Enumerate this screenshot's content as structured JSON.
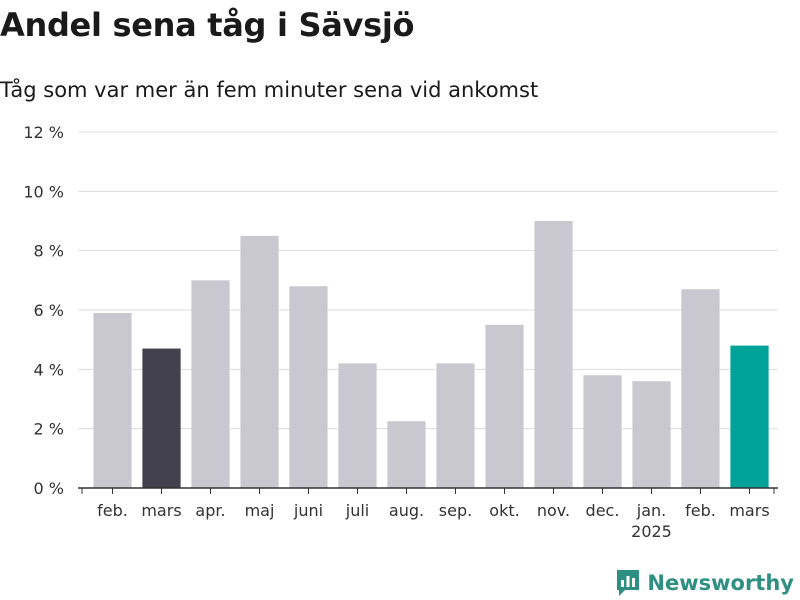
{
  "title": "Andel sena tåg i Sävsjö",
  "subtitle": "Tåg som var mer än fem minuter sena vid ankomst",
  "brand": "Newsworthy",
  "colors": {
    "default": "#c9c8d1",
    "prev_year": "#43414d",
    "current": "#00a399",
    "grid": "#dddddd",
    "brand": "#2f8f83"
  },
  "chart_data": {
    "type": "bar",
    "categories": [
      "feb.",
      "mars",
      "apr.",
      "maj",
      "juni",
      "juli",
      "aug.",
      "sep.",
      "okt.",
      "nov.",
      "dec.",
      "jan.",
      "feb.",
      "mars"
    ],
    "category_sublabels": [
      "",
      "",
      "",
      "",
      "",
      "",
      "",
      "",
      "",
      "",
      "",
      "2025",
      "",
      ""
    ],
    "values": [
      5.9,
      4.7,
      7.0,
      8.5,
      6.8,
      4.2,
      2.25,
      4.2,
      5.5,
      9.0,
      3.8,
      3.6,
      6.7,
      4.8
    ],
    "highlight": [
      "default",
      "prev_year",
      "default",
      "default",
      "default",
      "default",
      "default",
      "default",
      "default",
      "default",
      "default",
      "default",
      "default",
      "current"
    ],
    "y_ticks": [
      "0 %",
      "2 %",
      "4 %",
      "6 %",
      "8 %",
      "10 %",
      "12 %"
    ],
    "ylim": [
      0,
      12
    ],
    "unit": "%",
    "grid": true
  }
}
